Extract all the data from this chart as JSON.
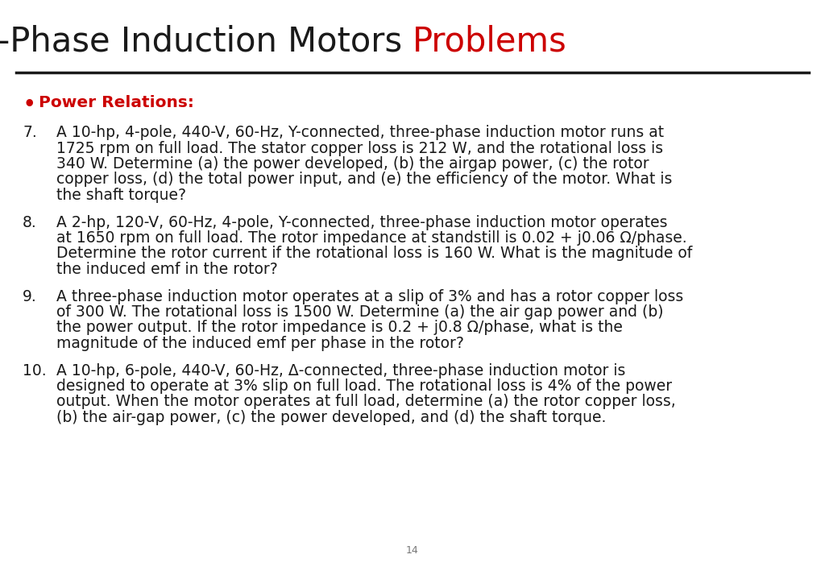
{
  "title_black": "Three-Phase Induction Motors ",
  "title_red": "Problems",
  "title_fontsize": 30,
  "background_color": "#ffffff",
  "bullet_label_color": "#cc0000",
  "bullet_label_text": "Power Relations:",
  "bullet_label_fontsize": 14.5,
  "body_fontsize": 13.5,
  "page_number": "14",
  "line_color": "#1a1a1a",
  "text_color": "#1a1a1a",
  "problems": [
    {
      "number": "7.",
      "lines": [
        "A 10-hp, 4-pole, 440-V, 60-Hz, Y-connected, three-phase induction motor runs at",
        "1725 rpm on full load. The stator copper loss is 212 W, and the rotational loss is",
        "340 W. Determine (a) the power developed, (b) the airgap power, (c) the rotor",
        "copper loss, (d) the total power input, and (e) the efficiency of the motor. What is",
        "the shaft torque?"
      ]
    },
    {
      "number": "8.",
      "lines": [
        "A 2-hp, 120-V, 60-Hz, 4-pole, Y-connected, three-phase induction motor operates",
        "at 1650 rpm on full load. The rotor impedance at standstill is 0.02 + j0.06 Ω/phase.",
        "Determine the rotor current if the rotational loss is 160 W. What is the magnitude of",
        "the induced emf in the rotor?"
      ]
    },
    {
      "number": "9.",
      "lines": [
        "A three-phase induction motor operates at a slip of 3% and has a rotor copper loss",
        "of 300 W. The rotational loss is 1500 W. Determine (a) the air gap power and (b)",
        "the power output. If the rotor impedance is 0.2 + j0.8 Ω/phase, what is the",
        "magnitude of the induced emf per phase in the rotor?"
      ]
    },
    {
      "number": "10.",
      "lines": [
        "A 10-hp, 6-pole, 440-V, 60-Hz, Δ-connected, three-phase induction motor is",
        "designed to operate at 3% slip on full load. The rotational loss is 4% of the power",
        "output. When the motor operates at full load, determine (a) the rotor copper loss,",
        "(b) the air-gap power, (c) the power developed, and (d) the shaft torque."
      ]
    }
  ]
}
